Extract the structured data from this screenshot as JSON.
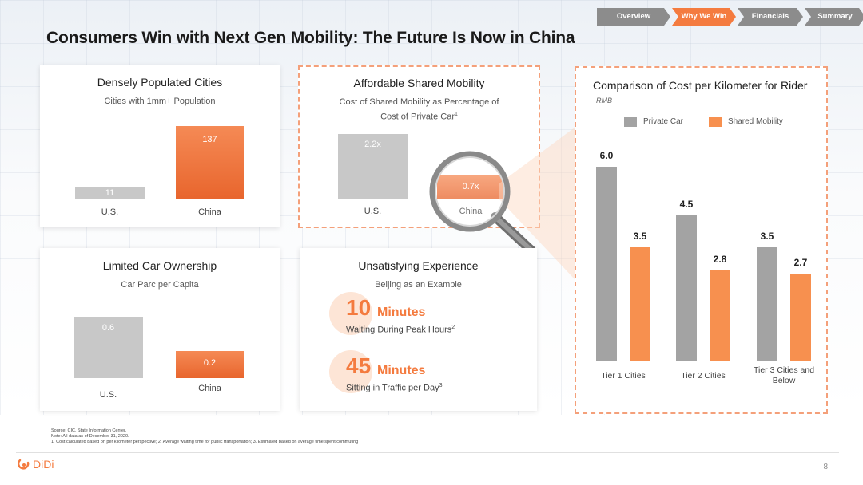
{
  "nav": {
    "tabs": [
      {
        "label": "Overview",
        "active": false
      },
      {
        "label": "Why We Win",
        "active": true
      },
      {
        "label": "Financials",
        "active": false
      },
      {
        "label": "Summary",
        "active": false
      }
    ]
  },
  "title": "Consumers Win with Next Gen Mobility: The Future Is Now in China",
  "colors": {
    "accent": "#f47b3f",
    "gray": "#c8c8c8",
    "private_car": "#a3a3a3",
    "shared_mobility": "#f7904f"
  },
  "cards": {
    "dense": {
      "title": "Densely Populated Cities",
      "subtitle": "Cities with 1mm+ Population"
    },
    "affordable": {
      "title": "Affordable Shared Mobility",
      "subtitle_line1": "Cost of Shared Mobility as Percentage of",
      "subtitle_line2": "Cost of Private Car",
      "subtitle_sup": "1"
    },
    "ownership": {
      "title": "Limited Car Ownership",
      "subtitle": "Car Parc per Capita"
    },
    "experience": {
      "title": "Unsatisfying Experience",
      "subtitle": "Beijing as an Example",
      "stat1": {
        "number": "10",
        "unit": "Minutes",
        "desc": "Waiting During Peak Hours",
        "sup": "2"
      },
      "stat2": {
        "number": "45",
        "unit": "Minutes",
        "desc": "Sitting in Traffic per Day",
        "sup": "3"
      }
    }
  },
  "chart_data": [
    {
      "type": "bar",
      "title": "Densely Populated Cities",
      "subtitle": "Cities with 1mm+ Population",
      "categories": [
        "U.S.",
        "China"
      ],
      "values": [
        11,
        137
      ],
      "labels": [
        "11",
        "137"
      ]
    },
    {
      "type": "bar",
      "title": "Affordable Shared Mobility",
      "categories": [
        "U.S.",
        "China"
      ],
      "values": [
        2.2,
        0.7
      ],
      "labels": [
        "2.2x",
        "0.7x"
      ]
    },
    {
      "type": "bar",
      "title": "Limited Car Ownership",
      "subtitle": "Car Parc per Capita",
      "categories": [
        "U.S.",
        "China"
      ],
      "values": [
        0.6,
        0.2
      ],
      "labels": [
        "0.6",
        "0.2"
      ]
    },
    {
      "type": "bar",
      "title": "Comparison of Cost per Kilometer for Rider",
      "unit": "RMB",
      "categories": [
        "Tier 1 Cities",
        "Tier 2 Cities",
        "Tier 3 Cities and Below"
      ],
      "series": [
        {
          "name": "Private Car",
          "values": [
            6.0,
            4.5,
            3.5
          ],
          "labels": [
            "6.0",
            "4.5",
            "3.5"
          ]
        },
        {
          "name": "Shared Mobility",
          "values": [
            3.5,
            2.8,
            2.7
          ],
          "labels": [
            "3.5",
            "2.8",
            "2.7"
          ]
        }
      ],
      "ylim": [
        0,
        6.5
      ],
      "legend": "top"
    }
  ],
  "footnotes": {
    "source": "Source: CIC, State Information Center.",
    "note": "Note:  All data as of December 31, 2020.",
    "line3": "1. Cost calculated based on per kilometer perspective; 2. Average waiting time for public transportation; 3. Estimated based on average time spent commuting"
  },
  "logo_text": "DiDi",
  "page_number": "8"
}
